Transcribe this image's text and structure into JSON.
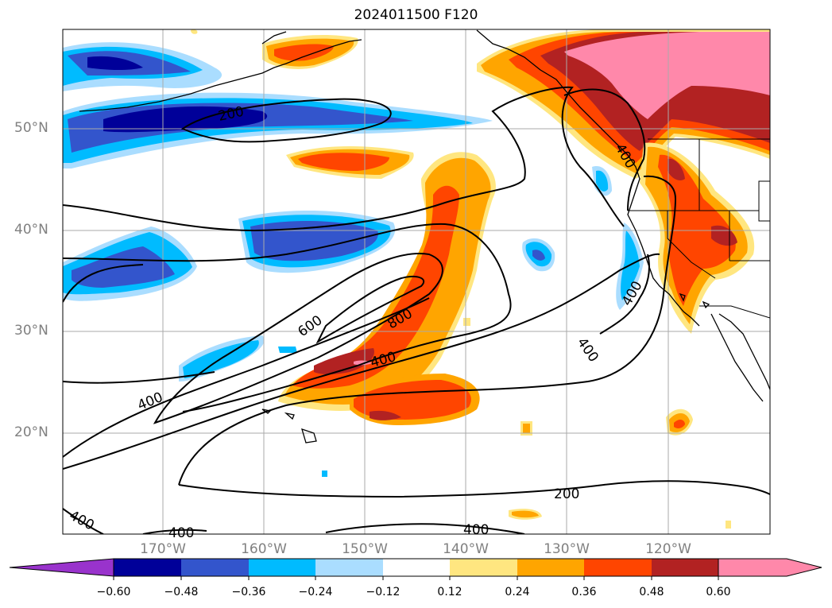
{
  "title": "2024011500 F120",
  "lat_labels": [
    "50°N",
    "40°N",
    "30°N",
    "20°N"
  ],
  "lon_labels": [
    "170°W",
    "160°W",
    "150°W",
    "140°W",
    "130°W",
    "120°W"
  ],
  "contour_labels": [
    "200",
    "200",
    "400",
    "400",
    "400",
    "400",
    "400",
    "400",
    "400",
    "600",
    "800",
    "400"
  ],
  "colorbar": {
    "tick_labels": [
      "−0.60",
      "−0.48",
      "−0.36",
      "−0.24",
      "−0.12",
      "0.12",
      "0.24",
      "0.36",
      "0.48",
      "0.60"
    ],
    "colors": [
      "#9933cc",
      "#000099",
      "#3355cc",
      "#00bbff",
      "#aaddff",
      "#ffffff",
      "#ffe680",
      "#ffa500",
      "#ff4500",
      "#b22222",
      "#ff88aa"
    ]
  },
  "colors": {
    "coast": "#000000",
    "contour": "#000000",
    "grid": "#aaaaaa"
  }
}
